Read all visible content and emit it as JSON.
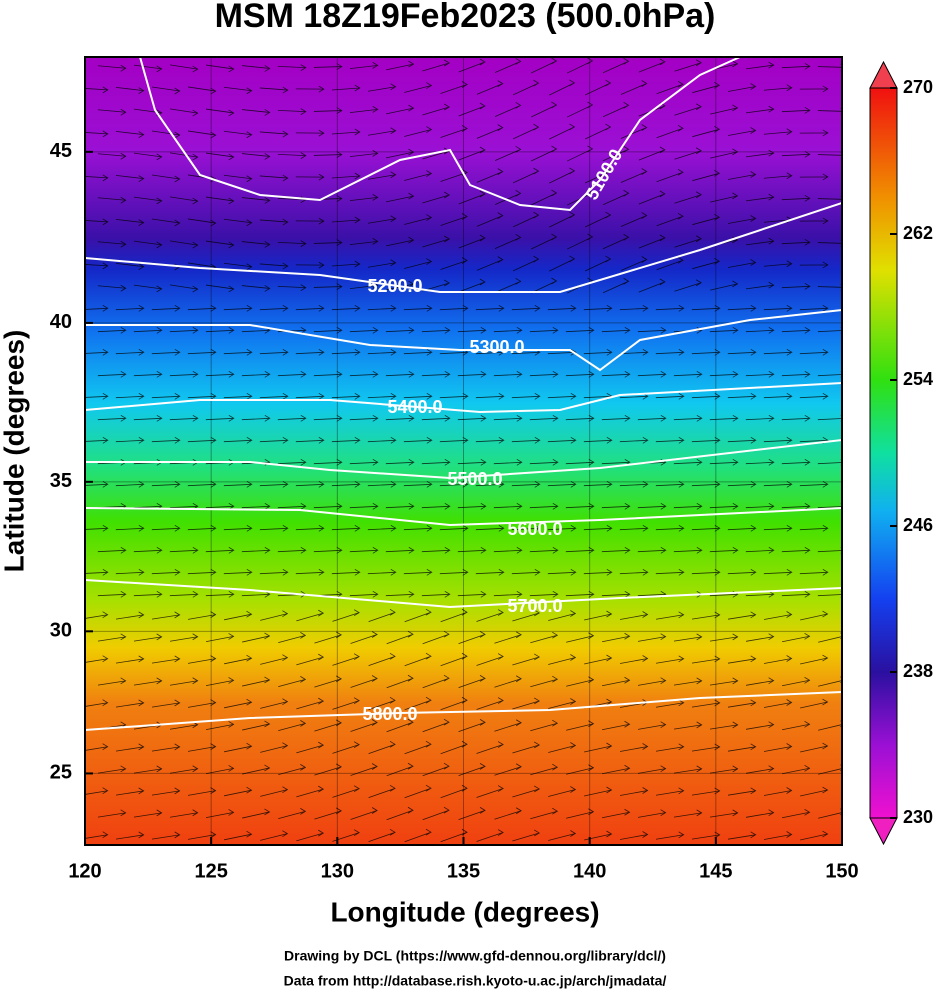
{
  "title": "MSM 18Z19Feb2023 (500.0hPa)",
  "chart_data": {
    "type": "contour",
    "xlabel": "Longitude (degrees)",
    "ylabel": "Latitude  (degrees)",
    "xlim": [
      120,
      150
    ],
    "ylim": [
      22.4,
      47.6
    ],
    "projection": "mercator",
    "xticks": [
      120,
      125,
      130,
      135,
      140,
      145,
      150
    ],
    "yticks": [
      25,
      30,
      35,
      40,
      45
    ],
    "grid": true,
    "contours": [
      {
        "value": 5100,
        "label": "5100.0"
      },
      {
        "value": 5200,
        "label": "5200.0"
      },
      {
        "value": 5300,
        "label": "5300.0"
      },
      {
        "value": 5400,
        "label": "5400.0"
      },
      {
        "value": 5500,
        "label": "5500.0"
      },
      {
        "value": 5600,
        "label": "5600.0"
      },
      {
        "value": 5700,
        "label": "5700.0"
      },
      {
        "value": 5800,
        "label": "5800.0"
      }
    ],
    "colorbar": {
      "lim": [
        230,
        270
      ],
      "ticks": [
        230,
        238,
        246,
        254,
        262,
        270
      ]
    }
  },
  "credits": [
    "Drawing by DCL (https://www.gfd-dennou.org/library/dcl/)",
    "Data from http://database.rish.kyoto-u.ac.jp/arch/jmadata/"
  ]
}
